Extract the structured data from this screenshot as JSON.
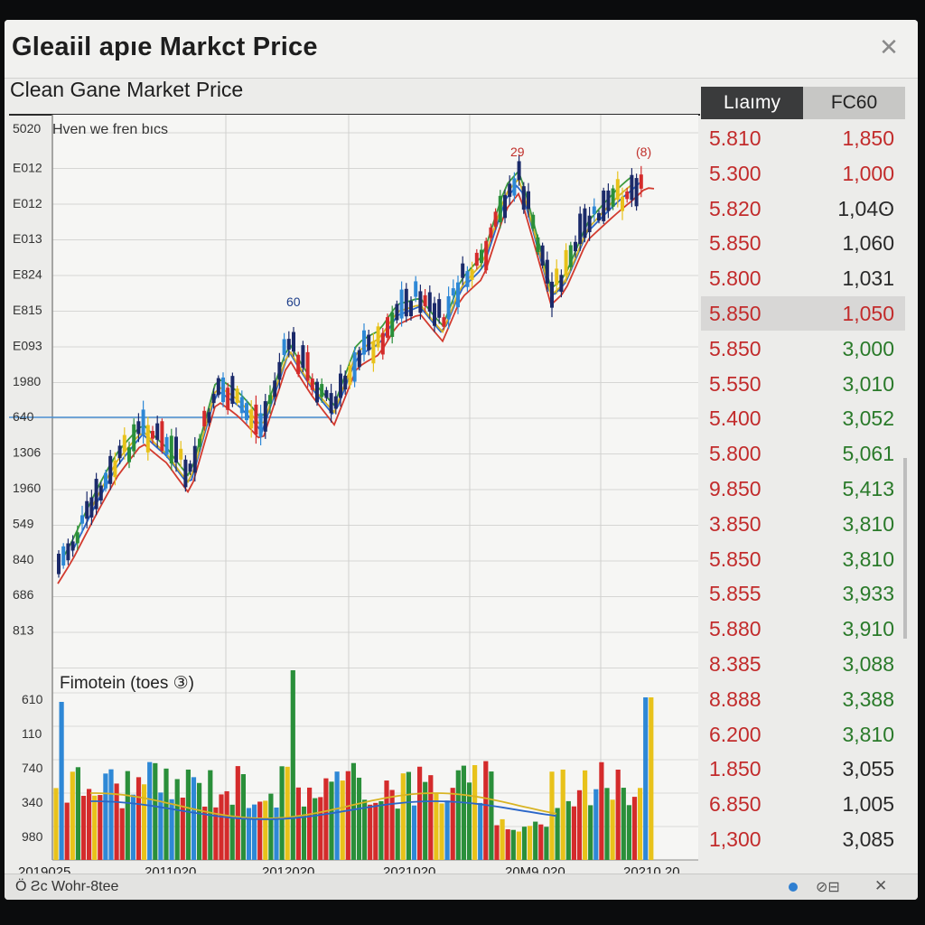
{
  "window": {
    "title": "Gleaiil apıe Markct Price",
    "close_icon": "close-icon"
  },
  "subtitle": "Clean Gane Market Price",
  "chart": {
    "legend_note": "Hven we fren bıcs",
    "annotations": [
      "60",
      "29",
      "(8)"
    ],
    "y_labels": [
      "5020",
      "E012",
      "E012",
      "E013",
      "E824",
      "E815",
      "E093",
      "1980",
      "640",
      "1306",
      "1960",
      "549",
      "840",
      "686",
      "813"
    ],
    "volume_title": "Fimotein  (toes ③)",
    "volume_y_labels": [
      "610",
      "110",
      "740",
      "340",
      "980"
    ],
    "x_labels": [
      "2019025",
      "2011020",
      "2012020",
      "2021020",
      "20M9.020",
      "20210.20"
    ],
    "colors": {
      "up": "#2a8f3a",
      "down": "#d42b2b",
      "neutral": "#1b2a6a",
      "yellow": "#e8c21a",
      "blue": "#2e88d6",
      "ma_red": "#d23a2e",
      "ma_blue": "#2a66c8",
      "ma_yellow": "#d8b424",
      "ma_green": "#3d9a3d",
      "hline": "#4a8fd1"
    }
  },
  "chart_data": {
    "type": "candlestick",
    "title": "Clean Gane Market Price",
    "candles": [],
    "volume": []
  },
  "price_panel": {
    "header_left": "Lıaımy",
    "header_right": "FC60",
    "rows": [
      {
        "a": "5.810",
        "b": "1,850",
        "a_color": "#c22b2b",
        "b_color": "#c22b2b"
      },
      {
        "a": "5.300",
        "b": "1,000",
        "a_color": "#c22b2b",
        "b_color": "#c22b2b"
      },
      {
        "a": "5.820",
        "b": "1,04ʘ",
        "a_color": "#c22b2b",
        "b_color": "#2a2a2a"
      },
      {
        "a": "5.850",
        "b": "1,060",
        "a_color": "#c22b2b",
        "b_color": "#2a2a2a"
      },
      {
        "a": "5.800",
        "b": "1,031",
        "a_color": "#c22b2b",
        "b_color": "#2a2a2a"
      },
      {
        "a": "5.850",
        "b": "1,050",
        "a_color": "#c22b2b",
        "b_color": "#c22b2b",
        "highlight": true
      },
      {
        "a": "5.850",
        "b": "3,000",
        "a_color": "#c22b2b",
        "b_color": "#2a7a2a"
      },
      {
        "a": "5.550",
        "b": "3,010",
        "a_color": "#c22b2b",
        "b_color": "#2a7a2a"
      },
      {
        "a": "5.400",
        "b": "3,052",
        "a_color": "#c22b2b",
        "b_color": "#2a7a2a"
      },
      {
        "a": "5.800",
        "b": "5,061",
        "a_color": "#c22b2b",
        "b_color": "#2a7a2a"
      },
      {
        "a": "9.850",
        "b": "5,413",
        "a_color": "#c22b2b",
        "b_color": "#2a7a2a"
      },
      {
        "a": "3.850",
        "b": "3,810",
        "a_color": "#c22b2b",
        "b_color": "#2a7a2a"
      },
      {
        "a": "5.850",
        "b": "3,810",
        "a_color": "#c22b2b",
        "b_color": "#2a7a2a"
      },
      {
        "a": "5.855",
        "b": "3,933",
        "a_color": "#c22b2b",
        "b_color": "#2a7a2a"
      },
      {
        "a": "5.880",
        "b": "3,910",
        "a_color": "#c22b2b",
        "b_color": "#2a7a2a"
      },
      {
        "a": "8.385",
        "b": "3,088",
        "a_color": "#c22b2b",
        "b_color": "#2a7a2a"
      },
      {
        "a": "8.888",
        "b": "3,388",
        "a_color": "#c22b2b",
        "b_color": "#2a7a2a"
      },
      {
        "a": "6.200",
        "b": "3,810",
        "a_color": "#c22b2b",
        "b_color": "#2a7a2a"
      },
      {
        "a": "1.850",
        "b": "3,055",
        "a_color": "#c22b2b",
        "b_color": "#2a2a2a"
      },
      {
        "a": "6.850",
        "b": "1,005",
        "a_color": "#c22b2b",
        "b_color": "#2a2a2a"
      },
      {
        "a": "1,300",
        "b": "3,085",
        "a_color": "#c22b2b",
        "b_color": "#2a2a2a"
      }
    ]
  },
  "status": {
    "left_text": "Ö Ƨc Wohr-8tee",
    "view_glyph": "⊘⊟",
    "close_glyph": "✕"
  }
}
